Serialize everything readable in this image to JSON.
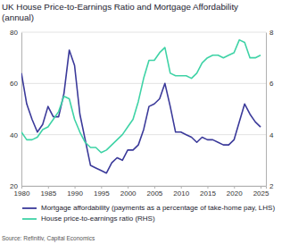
{
  "chart_data": {
    "type": "line",
    "title": "UK House Price-to-Earnings Ratio and Mortgage Affordability",
    "subtitle": "(annual)",
    "source": "Source: Refinitiv, Capital Economics",
    "x": [
      1980,
      1981,
      1982,
      1983,
      1984,
      1985,
      1986,
      1987,
      1988,
      1989,
      1990,
      1991,
      1992,
      1993,
      1994,
      1995,
      1996,
      1997,
      1998,
      1999,
      2000,
      2001,
      2002,
      2003,
      2004,
      2005,
      2006,
      2007,
      2008,
      2009,
      2010,
      2011,
      2012,
      2013,
      2014,
      2015,
      2016,
      2017,
      2018,
      2019,
      2020,
      2021,
      2022,
      2023,
      2024,
      2025
    ],
    "series": [
      {
        "name": "Mortgage affordability (payments as a percentage of take-home pay, LHS)",
        "color": "#3b3a9a",
        "values": [
          64,
          52,
          46,
          41,
          44,
          51,
          47,
          47,
          56,
          73,
          67,
          48,
          38,
          28,
          27,
          26,
          25,
          29,
          31,
          30,
          34,
          34,
          36,
          42,
          51,
          52,
          54,
          60,
          51,
          41,
          41,
          40,
          39,
          37,
          39,
          38,
          38,
          37,
          36,
          36,
          38,
          45,
          52,
          48,
          45,
          43
        ]
      },
      {
        "name": "House price-to-earnings ratio (RHS)",
        "color": "#3fd3a6",
        "axis": "y2",
        "values": [
          4.1,
          3.8,
          3.8,
          3.9,
          4.2,
          4.3,
          4.6,
          4.9,
          5.5,
          5.4,
          4.6,
          4.1,
          3.7,
          3.5,
          3.5,
          3.3,
          3.4,
          3.6,
          3.8,
          4.0,
          4.3,
          4.6,
          5.3,
          6.2,
          6.9,
          6.9,
          7.2,
          7.4,
          6.4,
          6.3,
          6.3,
          6.3,
          6.2,
          6.4,
          6.8,
          7.0,
          7.1,
          7.1,
          7.0,
          7.1,
          7.2,
          7.7,
          7.6,
          7.0,
          7.0,
          7.1
        ]
      }
    ],
    "xlim": [
      1980,
      2026
    ],
    "xticks": [
      1980,
      1985,
      1990,
      1995,
      2000,
      2005,
      2010,
      2015,
      2020,
      2025
    ],
    "ylim": [
      20,
      80
    ],
    "yticks": [
      20,
      40,
      60,
      80
    ],
    "y2lim": [
      2,
      8
    ],
    "y2ticks": [
      2,
      4,
      6,
      8
    ],
    "grid": true,
    "legend": "bottom"
  }
}
